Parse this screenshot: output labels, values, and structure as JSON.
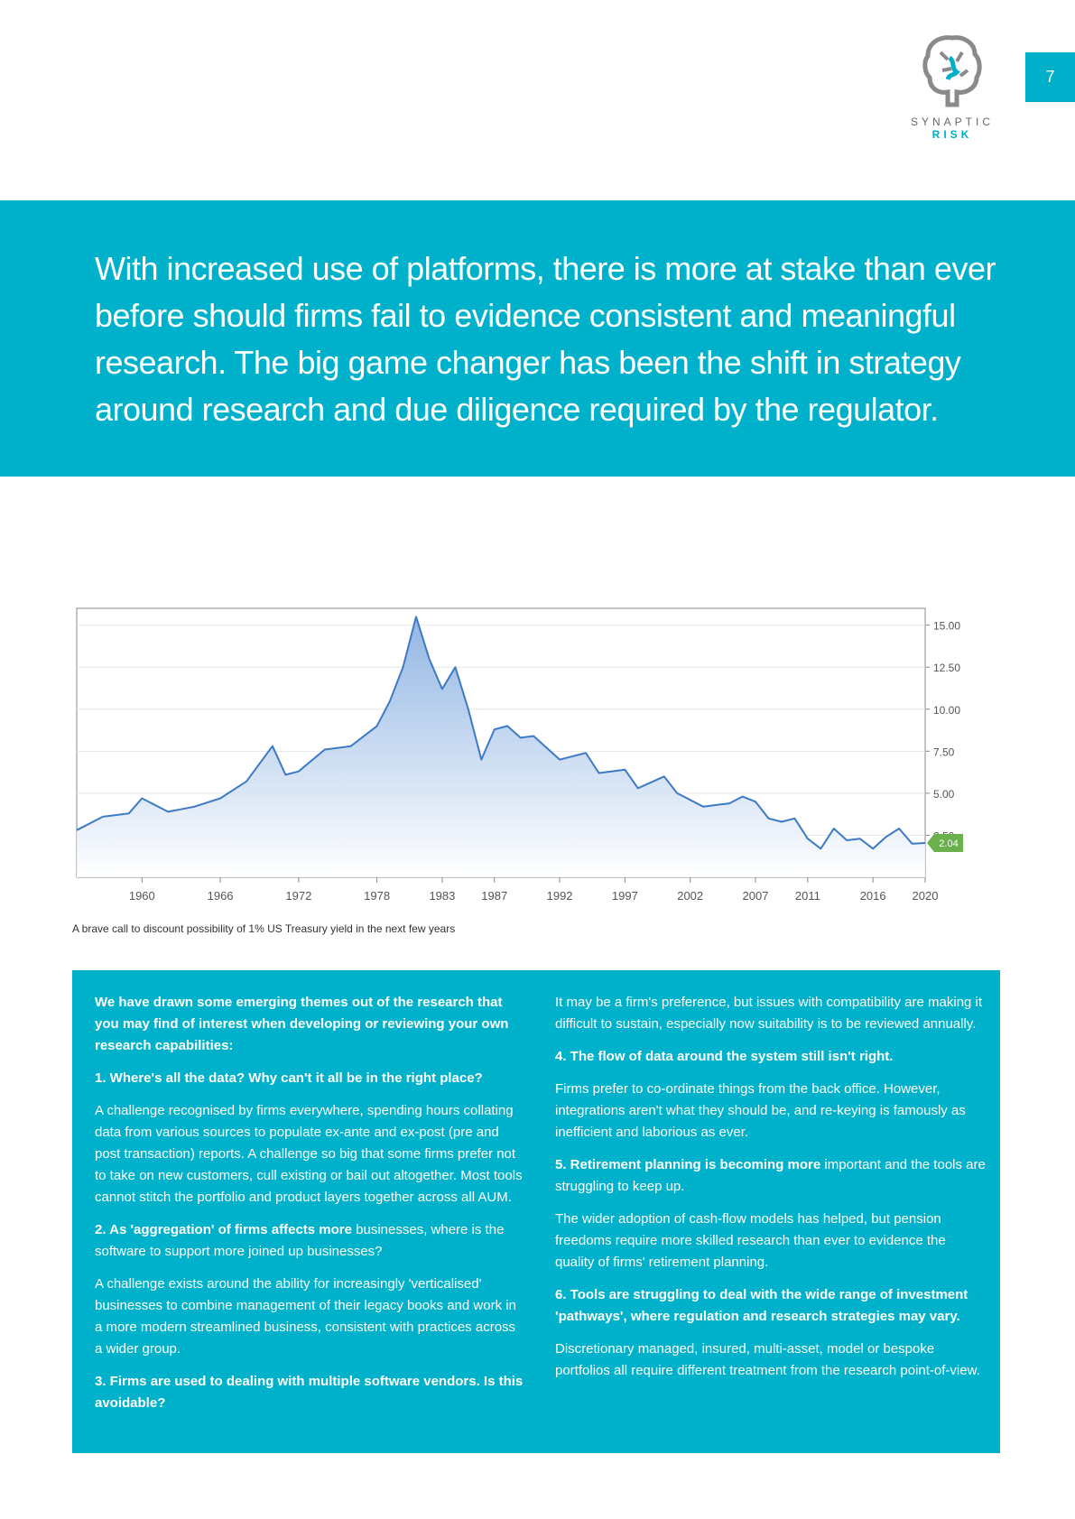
{
  "page_number": "7",
  "logo": {
    "name": "SYNAPTIC",
    "sub": "RISK"
  },
  "banner": "With increased use of platforms, there is more at stake than ever before should firms fail to evidence consistent and meaningful research. The big game changer has been the shift in strategy around research and due diligence required by the regulator.",
  "chart_data": {
    "type": "area",
    "x_ticks": [
      "1960",
      "1966",
      "1972",
      "1978",
      "1983",
      "1987",
      "1992",
      "1997",
      "2002",
      "2007",
      "2011",
      "2016",
      "2020"
    ],
    "y_ticks": [
      "15.00",
      "12.50",
      "10.00",
      "7.50",
      "5.00",
      "2.50"
    ],
    "ylim": [
      0,
      16
    ],
    "xlim": [
      1955,
      2020
    ],
    "last_value_label": "2.04",
    "colors": {
      "line": "#3d7ac6",
      "fill": "#bcd3ee",
      "badge": "#6ab04c"
    },
    "x": [
      1955,
      1957,
      1959,
      1960,
      1962,
      1964,
      1966,
      1968,
      1970,
      1971,
      1972,
      1974,
      1976,
      1978,
      1979,
      1980,
      1981,
      1982,
      1983,
      1984,
      1985,
      1986,
      1987,
      1988,
      1989,
      1990,
      1992,
      1994,
      1995,
      1997,
      1998,
      2000,
      2001,
      2002,
      2003,
      2004,
      2005,
      2006,
      2007,
      2008,
      2009,
      2010,
      2011,
      2012,
      2013,
      2014,
      2015,
      2016,
      2017,
      2018,
      2019,
      2020
    ],
    "y": [
      2.8,
      3.6,
      3.8,
      4.7,
      3.9,
      4.2,
      4.7,
      5.7,
      7.8,
      6.1,
      6.3,
      7.6,
      7.8,
      9.0,
      10.5,
      12.5,
      15.5,
      13.0,
      11.2,
      12.5,
      10.0,
      7.0,
      8.8,
      9.0,
      8.3,
      8.4,
      7.0,
      7.4,
      6.2,
      6.4,
      5.3,
      6.0,
      5.0,
      4.6,
      4.2,
      4.3,
      4.4,
      4.8,
      4.5,
      3.5,
      3.3,
      3.5,
      2.3,
      1.7,
      2.9,
      2.2,
      2.3,
      1.7,
      2.4,
      2.9,
      2.0,
      2.04
    ]
  },
  "caption": "A brave call to discount possibility of 1% US Treasury yield in the next few years",
  "left_col": {
    "intro": "We have drawn some emerging themes out of the research that you may find of interest when developing or reviewing your own research capabilities:",
    "h1": "1. Where's all the data? Why can't it all be in the right place?",
    "p1": "A challenge recognised by firms everywhere, spending hours collating data from various sources to populate ex-ante and ex-post (pre and post transaction) reports. A challenge so big that some firms prefer not to take on new customers, cull existing or bail out altogether. Most tools cannot stitch the portfolio and product layers together across all AUM.",
    "h2_bold": "2. As 'aggregation' of firms affects more",
    "h2_rest": " businesses, where is the software to support more joined up businesses?",
    "p2": "A challenge exists around the ability for increasingly 'verticalised' businesses to combine management of their legacy books and work in a more modern streamlined business, consistent with practices across a wider group.",
    "h3": "3. Firms are used to dealing with multiple software vendors. Is this avoidable?"
  },
  "right_col": {
    "p3": "It may be a firm's preference, but issues with compatibility are making it difficult to sustain, especially now suitability is to be reviewed annually.",
    "h4": "4. The flow of data around the system still isn't right.",
    "p4": "Firms prefer to co-ordinate things from the back office. However, integrations aren't what they should be, and re-keying is famously as inefficient and laborious as ever.",
    "h5_bold": "5. Retirement planning is becoming more",
    "h5_rest": " important and the tools are struggling to keep up.",
    "p5": "The wider adoption of cash-flow models has helped, but pension freedoms require more skilled research than ever to evidence the quality of firms' retirement planning.",
    "h6": "6. Tools are struggling to deal with the wide range of investment 'pathways', where regulation and research strategies may vary.",
    "p6": "Discretionary managed, insured, multi-asset, model or bespoke portfolios all require different treatment from the research point-of-view."
  }
}
